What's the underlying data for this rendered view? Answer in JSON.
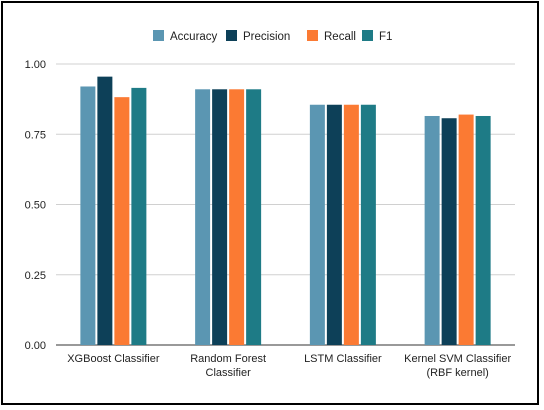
{
  "chart_data": {
    "type": "bar",
    "title": "",
    "xlabel": "",
    "ylabel": "",
    "ylim": [
      0,
      1
    ],
    "yticks": [
      "0.00",
      "0.25",
      "0.50",
      "0.75",
      "1.00"
    ],
    "grid": true,
    "legend_position": "top",
    "categories": [
      [
        "XGBoost Classifier"
      ],
      [
        "Random Forest",
        "Classifier"
      ],
      [
        "LSTM Classifier"
      ],
      [
        "Kernel SVM Classifier",
        "(RBF kernel)"
      ]
    ],
    "series": [
      {
        "name": "Accuracy",
        "color": "#5b96b2",
        "values": [
          0.92,
          0.91,
          0.855,
          0.815
        ]
      },
      {
        "name": "Precision",
        "color": "#0d4058",
        "values": [
          0.955,
          0.91,
          0.855,
          0.807
        ]
      },
      {
        "name": "Recall",
        "color": "#fb7a33",
        "values": [
          0.882,
          0.91,
          0.855,
          0.82
        ]
      },
      {
        "name": "F1",
        "color": "#1e7b86",
        "values": [
          0.915,
          0.91,
          0.855,
          0.815
        ]
      }
    ]
  }
}
